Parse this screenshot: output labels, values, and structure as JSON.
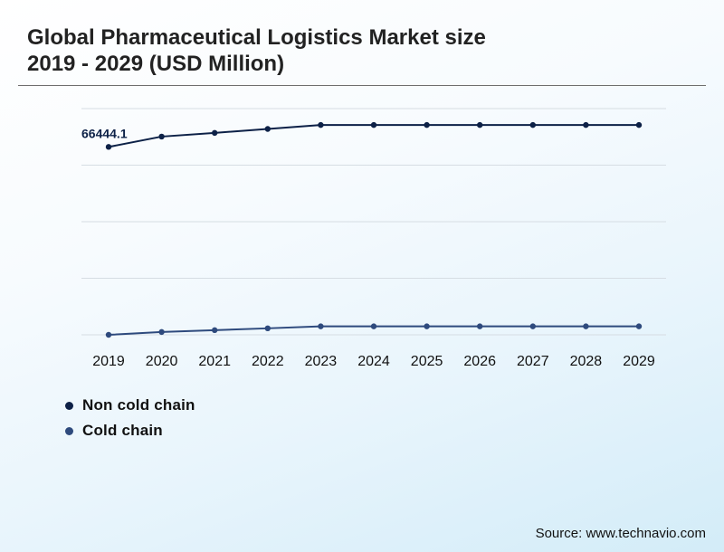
{
  "page": {
    "title_line1": "Global Pharmaceutical Logistics Market size",
    "title_line2": "2019 - 2029 (USD Million)",
    "source": "Source: www.technavio.com"
  },
  "chart_data": {
    "type": "line",
    "categories": [
      "2019",
      "2020",
      "2021",
      "2022",
      "2023",
      "2024",
      "2025",
      "2026",
      "2027",
      "2028",
      "2029"
    ],
    "series": [
      {
        "name": "Non cold chain",
        "color": "#0d2147",
        "values": [
          66444.1,
          70100,
          71400,
          72800,
          74200,
          74200,
          74200,
          74200,
          74200,
          74200,
          74200
        ],
        "data_labels": [
          "66444.1",
          "",
          "",
          "",
          "",
          "",
          "",
          "",
          "",
          "",
          ""
        ]
      },
      {
        "name": "Cold chain",
        "color": "#2e4a7d",
        "values": [
          0,
          1000,
          1650,
          2300,
          3000,
          3000,
          3000,
          3000,
          3000,
          3000,
          3000
        ],
        "data_labels": [
          "",
          "",
          "",
          "",
          "",
          "",
          "",
          "",
          "",
          "",
          ""
        ]
      }
    ],
    "ylim": [
      0,
      80000
    ],
    "yticks": [
      0,
      20000,
      40000,
      60000,
      80000
    ],
    "show_y_tick_labels": false,
    "grid": true,
    "legend_position": "bottom-left",
    "line_segment_style": "linear-before-2023-then-flat"
  }
}
